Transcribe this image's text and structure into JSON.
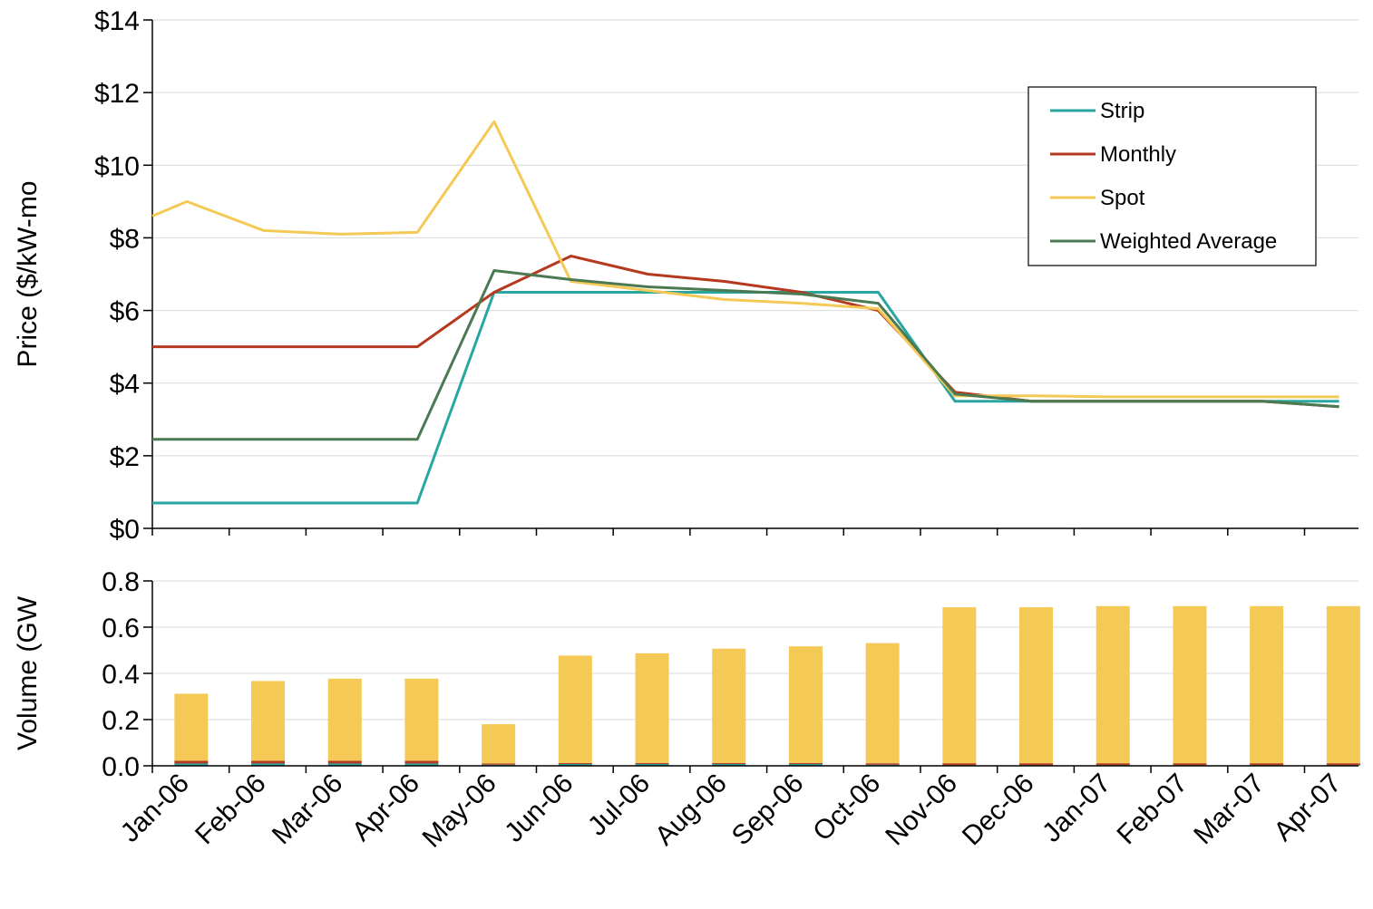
{
  "chart_data": [
    {
      "type": "line",
      "ylabel": "Price ($/kW-mo",
      "ylim": [
        0,
        14
      ],
      "yticks": [
        "$0",
        "$2",
        "$4",
        "$6",
        "$8",
        "$10",
        "$12",
        "$14"
      ],
      "grid": true,
      "legend": "top-right",
      "categories": [
        "Jan-06",
        "Feb-06",
        "Mar-06",
        "Apr-06",
        "May-06",
        "Jun-06",
        "Jul-06",
        "Aug-06",
        "Sep-06",
        "Oct-06",
        "Nov-06",
        "Dec-06",
        "Jan-07",
        "Feb-07",
        "Mar-07",
        "Apr-07"
      ],
      "x": [
        0,
        0.45,
        1.45,
        2.45,
        3.45,
        4.45,
        5.45,
        6.45,
        7.45,
        8.45,
        9.45,
        10.45,
        11.45,
        12.45,
        13.45,
        14.45,
        15.45
      ],
      "series": [
        {
          "name": "Strip",
          "color": "#2aa6a0",
          "values": [
            0.7,
            0.7,
            0.7,
            0.7,
            0.7,
            6.5,
            6.5,
            6.5,
            6.5,
            6.5,
            6.5,
            3.5,
            3.5,
            3.5,
            3.5,
            3.5,
            3.5
          ]
        },
        {
          "name": "Monthly",
          "color": "#b5391e",
          "values": [
            5.0,
            5.0,
            5.0,
            5.0,
            5.0,
            6.5,
            7.5,
            7.0,
            6.8,
            6.5,
            6.0,
            3.75,
            3.5,
            3.5,
            3.5,
            3.5,
            3.35
          ]
        },
        {
          "name": "Spot",
          "color": "#f4c955",
          "values": [
            8.6,
            9.0,
            8.2,
            8.1,
            8.15,
            11.2,
            6.8,
            6.55,
            6.3,
            6.2,
            6.05,
            3.65,
            3.65,
            3.62,
            3.62,
            3.62,
            3.62
          ]
        },
        {
          "name": "Weighted Average",
          "color": "#4b7a52",
          "values": [
            2.45,
            2.45,
            2.45,
            2.45,
            2.45,
            7.1,
            6.85,
            6.65,
            6.55,
            6.45,
            6.2,
            3.7,
            3.5,
            3.5,
            3.5,
            3.5,
            3.35
          ]
        }
      ]
    },
    {
      "type": "bar",
      "stacked": true,
      "ylabel": "Volume (GW",
      "ylim": [
        0,
        0.8
      ],
      "yticks": [
        "0.0",
        "0.2",
        "0.4",
        "0.6",
        "0.8"
      ],
      "categories": [
        "Jan-06",
        "Feb-06",
        "Mar-06",
        "Apr-06",
        "May-06",
        "Jun-06",
        "Jul-06",
        "Aug-06",
        "Sep-06",
        "Oct-06",
        "Nov-06",
        "Dec-06",
        "Jan-07",
        "Feb-07",
        "Mar-07",
        "Apr-07"
      ],
      "series": [
        {
          "name": "Strip",
          "color": "#2aa6a0",
          "values": [
            0.01,
            0.01,
            0.01,
            0.01,
            0.005,
            0.008,
            0.008,
            0.008,
            0.008,
            0.005,
            0.003,
            0.003,
            0.003,
            0.003,
            0.003,
            0.003
          ]
        },
        {
          "name": "Monthly",
          "color": "#b5391e",
          "values": [
            0.012,
            0.012,
            0.012,
            0.012,
            0.005,
            0.004,
            0.004,
            0.004,
            0.004,
            0.006,
            0.008,
            0.008,
            0.008,
            0.008,
            0.008,
            0.008
          ]
        },
        {
          "name": "Spot",
          "color": "#f4c955",
          "values": [
            0.29,
            0.345,
            0.355,
            0.355,
            0.17,
            0.465,
            0.475,
            0.495,
            0.505,
            0.52,
            0.675,
            0.675,
            0.68,
            0.68,
            0.68,
            0.68
          ]
        }
      ]
    }
  ]
}
